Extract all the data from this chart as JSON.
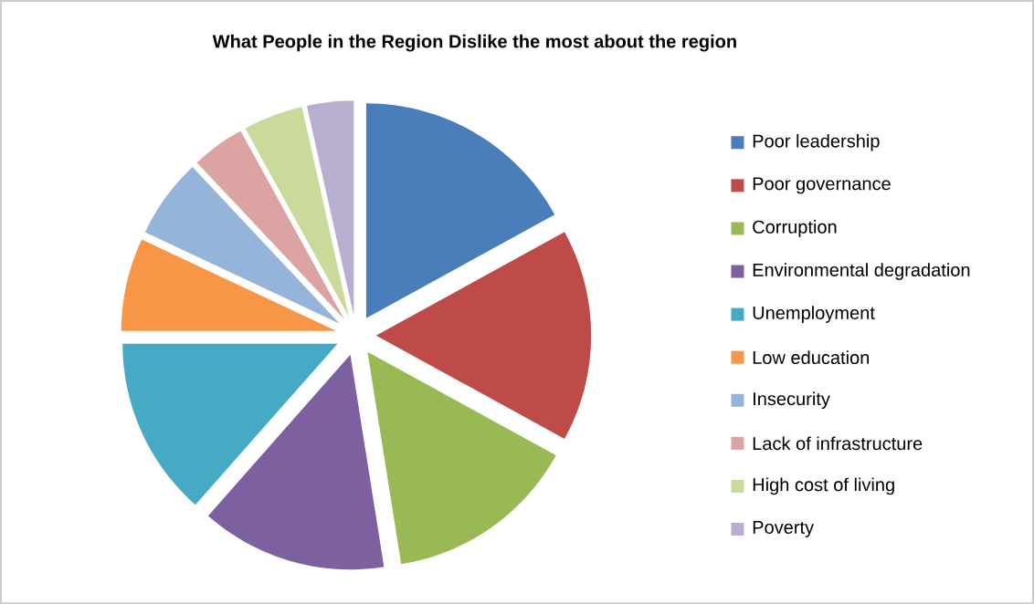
{
  "chart_data": {
    "type": "pie",
    "title": "What People in the Region Dislike  the most about the region",
    "categories": [
      "Poor leadership",
      "Poor governance",
      "Corruption",
      "Environmental degradation",
      "Unemployment",
      "Low education",
      "Insecurity",
      "Lack of infrastructure",
      "High cost of living",
      "Poverty"
    ],
    "values": [
      17,
      16,
      14.5,
      14,
      13.5,
      7,
      6,
      4,
      4.5,
      3.5
    ],
    "colors": [
      "#4a7ebb",
      "#be4b48",
      "#98b954",
      "#7d60a0",
      "#46aac5",
      "#f79646",
      "#94b4d9",
      "#dba3a2",
      "#c9da9a",
      "#b8aed0"
    ],
    "legend": "right"
  }
}
